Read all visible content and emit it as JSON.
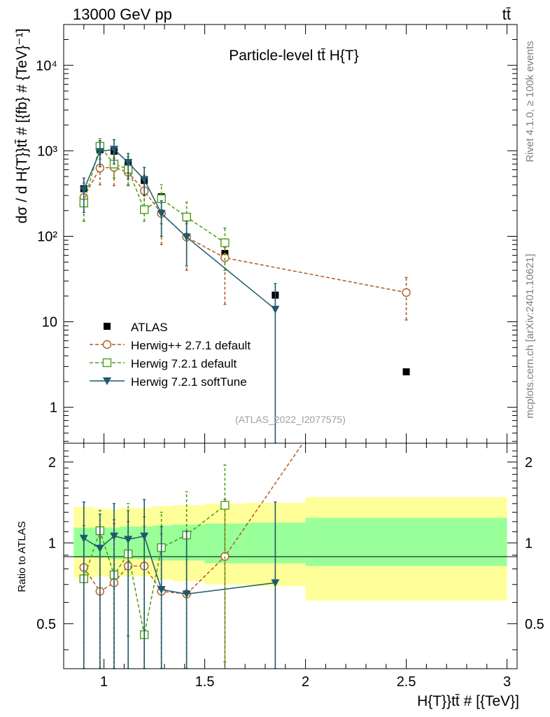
{
  "header": {
    "left": "13000 GeV pp",
    "right": "tt̄"
  },
  "side_labels": {
    "rivet": "Rivet 4.1.0, ≥ 100k events",
    "mcplots": "mcplots.cern.ch [arXiv:2401.10621]"
  },
  "watermark": "(ATLAS_2022_I2077575)",
  "chart_data": {
    "type": "scatter",
    "title": "Particle-level tt̄  H{T}",
    "xlabel": "H{T}}tt̄ # [{TeV}]",
    "ylabel": "dσ / d H{T}}tt̄ # [{fb} # {TeV}⁻¹]",
    "ratio_ylabel": "Ratio to ATLAS",
    "xlim": [
      0.8,
      3.05
    ],
    "ylim": [
      0.38,
      30000
    ],
    "ratio_ylim": [
      0.34,
      2.35
    ],
    "x_ticks": [
      {
        "value": 1,
        "label": "1"
      },
      {
        "value": 1.5,
        "label": "1.5"
      },
      {
        "value": 2,
        "label": "2"
      },
      {
        "value": 2.5,
        "label": "2.5"
      },
      {
        "value": 3,
        "label": "3"
      }
    ],
    "y_ticks": [
      {
        "value": 1,
        "label": "1"
      },
      {
        "value": 10,
        "label": "10"
      },
      {
        "value": 100,
        "label": "10²"
      },
      {
        "value": 1000,
        "label": "10³"
      },
      {
        "value": 10000,
        "label": "10⁴"
      }
    ],
    "ratio_ticks": [
      {
        "value": 0.5,
        "label": "0.5"
      },
      {
        "value": 1,
        "label": "1"
      },
      {
        "value": 2,
        "label": "2"
      }
    ],
    "bins": [
      {
        "lo": 0.85,
        "hi": 0.95
      },
      {
        "lo": 0.95,
        "hi": 1.02
      },
      {
        "lo": 1.02,
        "hi": 1.08
      },
      {
        "lo": 1.08,
        "hi": 1.16
      },
      {
        "lo": 1.16,
        "hi": 1.24
      },
      {
        "lo": 1.24,
        "hi": 1.34
      },
      {
        "lo": 1.34,
        "hi": 1.5
      },
      {
        "lo": 1.5,
        "hi": 1.7
      },
      {
        "lo": 1.7,
        "hi": 2.0
      },
      {
        "lo": 2.0,
        "hi": 3.0
      }
    ],
    "band_inner": [
      [
        0.88,
        1.14
      ],
      [
        0.88,
        1.14
      ],
      [
        0.87,
        1.14
      ],
      [
        0.87,
        1.15
      ],
      [
        0.87,
        1.15
      ],
      [
        0.86,
        1.16
      ],
      [
        0.86,
        1.17
      ],
      [
        0.84,
        1.18
      ],
      [
        0.84,
        1.19
      ],
      [
        0.82,
        1.24
      ]
    ],
    "band_outer": [
      [
        0.74,
        1.36
      ],
      [
        0.75,
        1.34
      ],
      [
        0.75,
        1.33
      ],
      [
        0.75,
        1.35
      ],
      [
        0.75,
        1.35
      ],
      [
        0.73,
        1.37
      ],
      [
        0.72,
        1.38
      ],
      [
        0.7,
        1.4
      ],
      [
        0.69,
        1.41
      ],
      [
        0.61,
        1.48
      ]
    ],
    "series": [
      {
        "name": "ATLAS",
        "color": "#000000",
        "marker": "square-filled",
        "x": [
          0.9,
          0.98,
          1.05,
          1.12,
          1.2,
          1.285,
          1.41,
          1.6,
          1.85,
          2.5
        ],
        "y": [
          360,
          1030,
          990,
          720,
          450,
          290,
          165,
          63,
          20.5,
          2.6
        ],
        "ratio": [
          1,
          1,
          1,
          1,
          1,
          1,
          1,
          1,
          1,
          1
        ]
      },
      {
        "name": "Herwig++ 2.7.1 default",
        "color": "#B35A1F",
        "marker": "circle-open",
        "dashed": true,
        "x": [
          0.9,
          0.98,
          1.05,
          1.12,
          1.2,
          1.285,
          1.41,
          1.6,
          2.5
        ],
        "y": [
          285,
          630,
          640,
          560,
          340,
          185,
          98,
          56,
          22
        ],
        "err": [
          [
            150,
            420
          ],
          [
            400,
            900
          ],
          [
            390,
            820
          ],
          [
            390,
            720
          ],
          [
            200,
            520
          ],
          [
            80,
            270
          ],
          [
            40,
            140
          ],
          [
            16,
            74
          ],
          [
            10.5,
            33
          ]
        ],
        "ratio": [
          0.81,
          0.66,
          0.71,
          0.82,
          0.82,
          0.66,
          0.645,
          0.89,
          8.5
        ],
        "ratio_err": [
          [
            0.34,
            1.16
          ],
          [
            0.34,
            1.05
          ],
          [
            0.34,
            1.22
          ],
          [
            0.45,
            1.2
          ],
          [
            0.34,
            1.25
          ],
          [
            0.34,
            1.08
          ],
          [
            0.34,
            1.05
          ],
          [
            0.34,
            1.45
          ],
          null
        ]
      },
      {
        "name": "Herwig 7.2.1 default",
        "color": "#4A9E16",
        "marker": "square-open",
        "dashed": true,
        "x": [
          0.9,
          0.98,
          1.05,
          1.12,
          1.2,
          1.285,
          1.41,
          1.6
        ],
        "y": [
          245,
          1130,
          700,
          610,
          205,
          275,
          168,
          84
        ],
        "err": [
          [
            150,
            370
          ],
          [
            800,
            1380
          ],
          [
            480,
            940
          ],
          [
            400,
            850
          ],
          [
            150,
            300
          ],
          [
            140,
            400
          ],
          [
            108,
            250
          ],
          [
            40,
            125
          ]
        ],
        "ratio": [
          0.735,
          1.11,
          0.76,
          0.91,
          0.455,
          0.96,
          1.07,
          1.38
        ],
        "ratio_err": [
          [
            0.34,
            1.05
          ],
          [
            0.34,
            1.32
          ],
          [
            0.34,
            1.18
          ],
          [
            0.45,
            1.4
          ],
          [
            0.34,
            1.15
          ],
          [
            0.34,
            1.3
          ],
          [
            0.34,
            1.55
          ],
          [
            0.36,
            1.95
          ]
        ]
      },
      {
        "name": "Herwig 7.2.1 softTune",
        "color": "#1E5A6A",
        "marker": "triangle-down-filled",
        "dashed": false,
        "x": [
          0.9,
          0.98,
          1.05,
          1.12,
          1.2,
          1.285,
          1.41,
          1.85
        ],
        "y": [
          350,
          980,
          1040,
          730,
          460,
          185,
          98,
          14
        ],
        "err": [
          [
            190,
            480
          ],
          [
            650,
            1320
          ],
          [
            700,
            1350
          ],
          [
            470,
            930
          ],
          [
            300,
            640
          ],
          [
            100,
            260
          ],
          [
            45,
            150
          ],
          [
            0.38,
            28
          ]
        ],
        "ratio": [
          1.04,
          0.955,
          1.06,
          1.03,
          1.06,
          0.67,
          0.645,
          0.71
        ],
        "ratio_err": [
          [
            0.34,
            1.42
          ],
          [
            0.34,
            1.28
          ],
          [
            0.34,
            1.4
          ],
          [
            0.34,
            1.32
          ],
          [
            0.34,
            1.45
          ],
          [
            0.34,
            1.15
          ],
          [
            0.34,
            1.1
          ],
          [
            0.34,
            1.42
          ]
        ]
      }
    ]
  }
}
